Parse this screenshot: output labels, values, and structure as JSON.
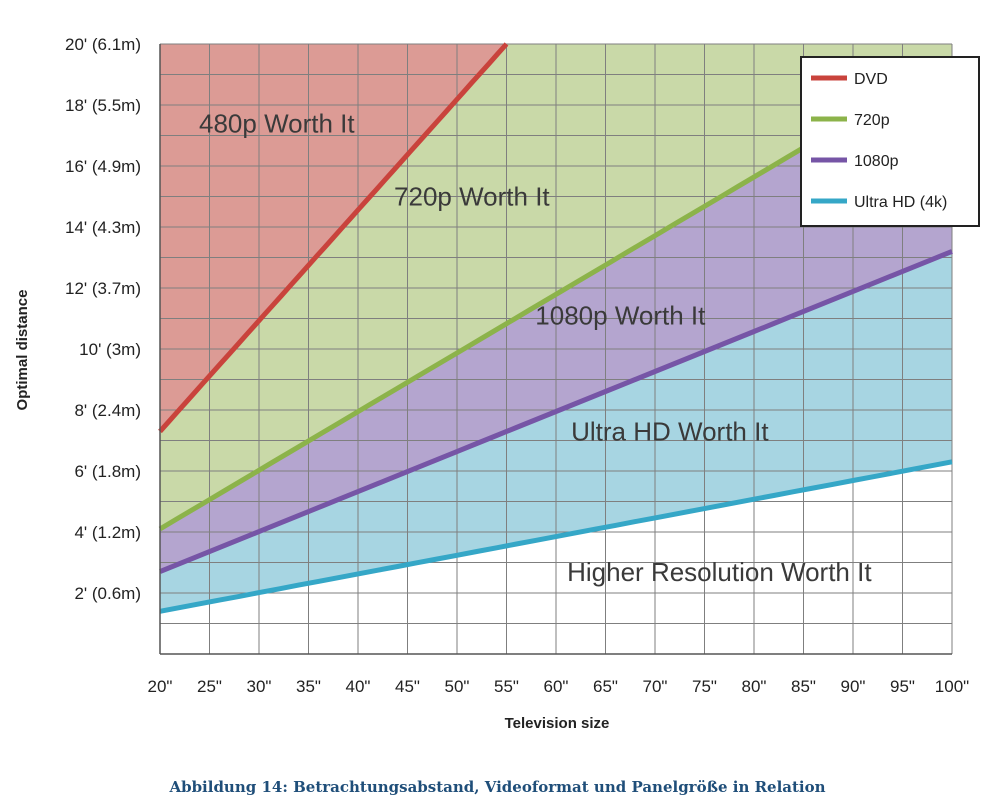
{
  "chart_data": {
    "type": "area",
    "xlabel": "Television size",
    "ylabel": "Optimal distance",
    "x_ticks": [
      20,
      25,
      30,
      35,
      40,
      45,
      50,
      55,
      60,
      65,
      70,
      75,
      80,
      85,
      90,
      95,
      100
    ],
    "x_tick_labels": [
      "20\"",
      "25\"",
      "30\"",
      "35\"",
      "40\"",
      "45\"",
      "50\"",
      "55\"",
      "60\"",
      "65\"",
      "70\"",
      "75\"",
      "80\"",
      "85\"",
      "90\"",
      "95\"",
      "100\""
    ],
    "y_ticks": [
      2,
      4,
      6,
      8,
      10,
      12,
      14,
      16,
      18,
      20
    ],
    "y_tick_labels": [
      "2' (0.6m)",
      "4' (1.2m)",
      "6' (1.8m)",
      "8' (2.4m)",
      "10' (3m)",
      "12' (3.7m)",
      "14' (4.3m)",
      "16' (4.9m)",
      "18' (5.5m)",
      "20' (6.1m)"
    ],
    "xlim": [
      20,
      100
    ],
    "ylim": [
      0,
      20
    ],
    "grid": true,
    "legend_position": "top-right",
    "series": [
      {
        "name": "DVD",
        "color": "#c9433c",
        "x": [
          20,
          55
        ],
        "y": [
          7.3,
          20
        ]
      },
      {
        "name": "720p",
        "color": "#8cb34a",
        "x": [
          20,
          85
        ],
        "y": [
          4.1,
          16.6
        ]
      },
      {
        "name": "1080p",
        "color": "#7655a6",
        "x": [
          20,
          100
        ],
        "y": [
          2.7,
          13.2
        ]
      },
      {
        "name": "Ultra HD (4k)",
        "color": "#35a7c7",
        "x": [
          20,
          100
        ],
        "y": [
          1.4,
          6.3
        ]
      }
    ],
    "regions": [
      {
        "label": "480p Worth It",
        "color": "#dc9b95",
        "label_x": 31.8,
        "label_y": 17.1
      },
      {
        "label": "720p Worth It",
        "color": "#c9d9a8",
        "label_x": 51.5,
        "label_y": 14.7
      },
      {
        "label": "1080p Worth It",
        "color": "#b4a5cf",
        "label_x": 66.5,
        "label_y": 10.8
      },
      {
        "label": "Ultra HD Worth It",
        "color": "#a7d5e2",
        "label_x": 71.5,
        "label_y": 7.0
      },
      {
        "label": "Higher Resolution Worth It",
        "color": "#ffffff",
        "label_x": 76.5,
        "label_y": 2.4
      }
    ]
  },
  "caption": "Abbildung 14: Betrachtungsabstand, Videoformat und Panelgröße in Relation"
}
